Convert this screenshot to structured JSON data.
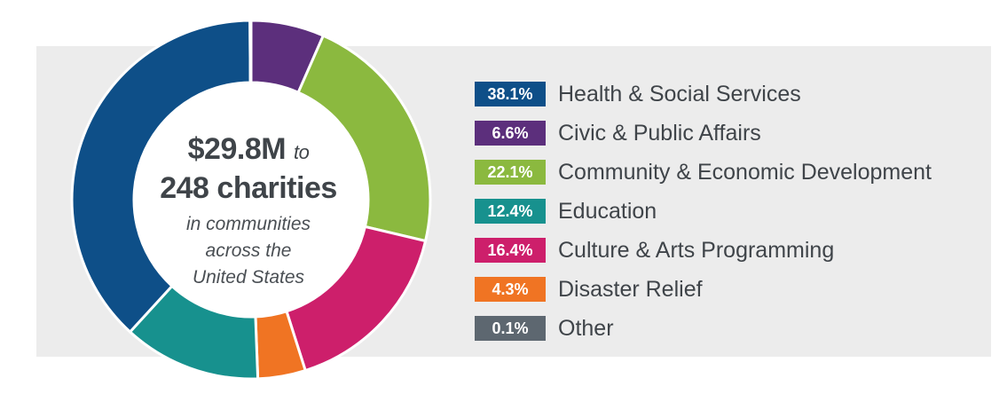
{
  "center": {
    "amount": "$29.8M",
    "to": "to",
    "charities": "248 charities",
    "sub1": "in communities",
    "sub2": "across the",
    "sub3": "United States"
  },
  "chart_data": {
    "type": "pie",
    "donut": true,
    "series": [
      {
        "label": "Health & Social Services",
        "percent_label": "38.1%",
        "value": 38.1,
        "color": "#0e4f88"
      },
      {
        "label": "Civic & Public Affairs",
        "percent_label": "6.6%",
        "value": 6.6,
        "color": "#5c2f7c"
      },
      {
        "label": "Community & Economic Development",
        "percent_label": "22.1%",
        "value": 22.1,
        "color": "#8bb93f"
      },
      {
        "label": "Education",
        "percent_label": "12.4%",
        "value": 12.4,
        "color": "#17918e"
      },
      {
        "label": "Culture & Arts Programming",
        "percent_label": "16.4%",
        "value": 16.4,
        "color": "#cd1f6b"
      },
      {
        "label": "Disaster Relief",
        "percent_label": "4.3%",
        "value": 4.3,
        "color": "#f07423"
      },
      {
        "label": "Other",
        "percent_label": "0.1%",
        "value": 0.1,
        "color": "#5d6770"
      }
    ],
    "slice_order": [
      "Civic & Public Affairs",
      "Community & Economic Development",
      "Culture & Arts Programming",
      "Disaster Relief",
      "Education",
      "Health & Social Services",
      "Other"
    ]
  }
}
